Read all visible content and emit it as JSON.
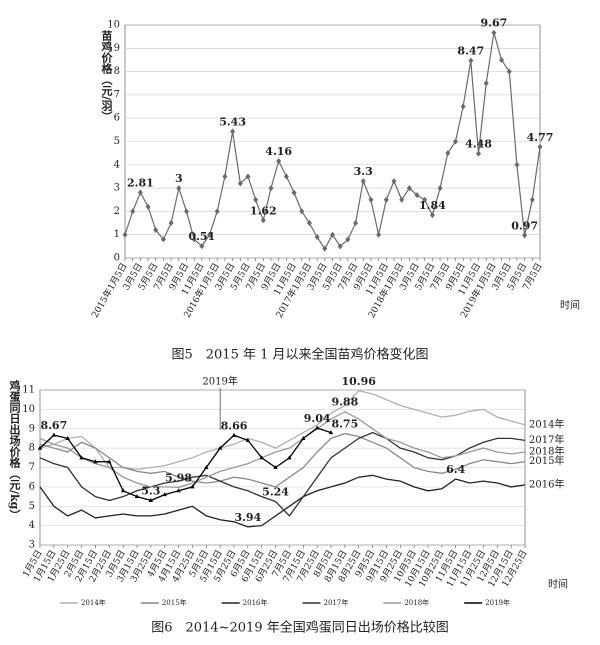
{
  "chart_data": [
    {
      "type": "line",
      "title": "图5　2015 年 1 月以来全国苗鸡价格变化图",
      "y_label": "苗鸡价格（元/羽）",
      "x_label": "时间",
      "categories": [
        "2015年1月5日",
        null,
        "3月5日",
        null,
        "5月5日",
        null,
        "7月5日",
        null,
        "9月5日",
        null,
        "11月5日",
        null,
        "2016年1月5日",
        null,
        "3月5日",
        null,
        "5月5日",
        null,
        "7月5日",
        null,
        "9月5日",
        null,
        "11月5日",
        null,
        "2017年1月5日",
        null,
        "3月5日",
        null,
        "5月5日",
        null,
        "7月5日",
        null,
        "9月5日",
        null,
        "11月5日",
        null,
        "2018年1月5日",
        null,
        "3月5日",
        null,
        "5月5日",
        null,
        "7月5日",
        null,
        "9月5日",
        null,
        "11月5日",
        null,
        "2019年1月5日",
        null,
        "3月5日",
        null,
        "5月5日",
        null,
        "7月5日"
      ],
      "values": [
        1.0,
        2.0,
        2.81,
        2.2,
        1.2,
        0.8,
        1.5,
        3.0,
        2.0,
        0.8,
        0.51,
        1.0,
        2.0,
        3.5,
        5.43,
        3.2,
        3.5,
        2.5,
        1.62,
        3.0,
        4.16,
        3.5,
        2.8,
        2.0,
        1.5,
        0.9,
        0.4,
        1.0,
        0.5,
        0.8,
        1.5,
        3.3,
        2.5,
        1.0,
        2.5,
        3.3,
        2.5,
        3.0,
        2.7,
        2.5,
        1.84,
        3.0,
        4.5,
        5.0,
        6.5,
        8.47,
        4.48,
        7.5,
        9.67,
        8.5,
        8.0,
        4.0,
        0.97,
        2.5,
        4.77
      ],
      "value_labels": [
        null,
        null,
        "2.81",
        null,
        null,
        null,
        null,
        "3",
        null,
        null,
        "0.51",
        null,
        null,
        null,
        "5.43",
        null,
        null,
        null,
        "1.62",
        null,
        "4.16",
        null,
        null,
        null,
        null,
        null,
        null,
        null,
        null,
        null,
        null,
        "3.3",
        null,
        null,
        null,
        null,
        null,
        null,
        null,
        null,
        "1.84",
        null,
        null,
        null,
        null,
        "8.47",
        "4.48",
        null,
        "9.67",
        null,
        null,
        null,
        "0.97",
        null,
        "4.77"
      ],
      "color": "#6a6a6a",
      "ylim": [
        0,
        10
      ],
      "yticks": [
        0,
        1,
        2,
        3,
        4,
        5,
        6,
        7,
        8,
        9,
        10
      ],
      "grid": true
    },
    {
      "type": "line",
      "title": "图6　2014~2019 年全国鸡蛋同日出场价格比较图",
      "y_label": "鸡蛋同日出场价格（元/kg）",
      "x_label": "时间",
      "categories": [
        "1月5日",
        "1月15日",
        "1月25日",
        "2月5日",
        "2月15日",
        "2月25日",
        "3月5日",
        "3月15日",
        "3月25日",
        "4月5日",
        "4月15日",
        "4月25日",
        "5月5日",
        "5月15日",
        "5月25日",
        "6月5日",
        "6月15日",
        "6月25日",
        "7月5日",
        "7月15日",
        "7月25日",
        "8月5日",
        "8月15日",
        "8月25日",
        "9月5日",
        "9月15日",
        "9月25日",
        "10月5日",
        "10月15日",
        "10月25日",
        "11月5日",
        "11月15日",
        "11月25日",
        "12月5日",
        "12月15日",
        "12月25日"
      ],
      "series": [
        {
          "name": "2014年",
          "color": "#b0b0b0",
          "values": [
            8.0,
            8.2,
            8.5,
            8.6,
            8.0,
            7.0,
            7.0,
            6.9,
            7.0,
            7.1,
            7.3,
            7.5,
            7.8,
            8.0,
            8.2,
            8.5,
            8.3,
            8.0,
            8.4,
            8.8,
            9.2,
            9.8,
            10.2,
            10.96,
            10.8,
            10.5,
            10.2,
            10.0,
            9.8,
            9.6,
            9.7,
            9.9,
            10.0,
            9.6,
            9.4,
            9.2
          ],
          "value_labels": [
            null,
            null,
            null,
            null,
            null,
            null,
            null,
            null,
            null,
            null,
            null,
            null,
            null,
            null,
            null,
            null,
            null,
            null,
            null,
            null,
            null,
            null,
            null,
            "10.96",
            null,
            null,
            null,
            null,
            null,
            null,
            null,
            null,
            null,
            null,
            null,
            null
          ]
        },
        {
          "name": "2015年",
          "color": "#8a8a8a",
          "values": [
            8.2,
            8.0,
            7.8,
            8.3,
            8.0,
            7.5,
            7.0,
            6.8,
            6.7,
            6.8,
            6.5,
            6.3,
            6.2,
            6.3,
            6.5,
            6.4,
            6.2,
            6.0,
            6.5,
            7.0,
            7.8,
            8.5,
            8.75,
            8.6,
            8.3,
            8.0,
            7.5,
            7.0,
            6.8,
            6.7,
            6.9,
            7.2,
            7.4,
            7.3,
            7.2,
            7.3
          ],
          "value_labels": [
            null,
            null,
            null,
            null,
            null,
            null,
            null,
            null,
            null,
            null,
            null,
            null,
            null,
            null,
            null,
            null,
            null,
            null,
            null,
            null,
            null,
            null,
            "8.75",
            null,
            null,
            null,
            null,
            null,
            null,
            null,
            null,
            null,
            null,
            null,
            null,
            null
          ]
        },
        {
          "name": "2016年",
          "color": "#222222",
          "values": [
            6.0,
            5.0,
            4.5,
            4.8,
            4.4,
            4.5,
            4.6,
            4.5,
            4.5,
            4.6,
            4.8,
            5.0,
            4.5,
            4.3,
            4.2,
            3.94,
            4.0,
            4.5,
            5.0,
            5.5,
            5.8,
            6.0,
            6.2,
            6.5,
            6.6,
            6.4,
            6.3,
            6.0,
            5.8,
            5.9,
            6.4,
            6.2,
            6.3,
            6.2,
            6.0,
            6.1
          ],
          "value_labels": [
            null,
            null,
            null,
            null,
            null,
            null,
            null,
            null,
            null,
            null,
            null,
            null,
            null,
            null,
            null,
            "3.94",
            null,
            null,
            null,
            null,
            null,
            null,
            null,
            null,
            null,
            null,
            null,
            null,
            null,
            null,
            "6.4",
            null,
            null,
            null,
            null,
            null
          ]
        },
        {
          "name": "2017年",
          "color": "#333333",
          "values": [
            7.5,
            7.2,
            7.0,
            6.0,
            5.5,
            5.3,
            5.5,
            5.8,
            6.0,
            6.2,
            6.3,
            6.5,
            6.6,
            6.3,
            6.0,
            5.8,
            5.5,
            5.24,
            4.5,
            5.5,
            6.5,
            7.5,
            8.0,
            8.5,
            8.8,
            8.5,
            8.0,
            7.8,
            7.5,
            7.4,
            7.6,
            8.0,
            8.3,
            8.5,
            8.5,
            8.4
          ],
          "value_labels": [
            null,
            null,
            null,
            null,
            null,
            null,
            null,
            null,
            null,
            null,
            null,
            null,
            null,
            null,
            null,
            null,
            null,
            "5.24",
            null,
            null,
            null,
            null,
            null,
            null,
            null,
            null,
            null,
            null,
            null,
            null,
            null,
            null,
            null,
            null,
            null,
            null
          ]
        },
        {
          "name": "2018年",
          "color": "#999999",
          "values": [
            8.5,
            8.2,
            8.0,
            7.5,
            7.2,
            7.0,
            6.5,
            6.2,
            6.0,
            6.0,
            5.98,
            6.2,
            6.5,
            6.8,
            7.0,
            7.2,
            7.5,
            7.8,
            8.0,
            8.5,
            9.0,
            9.5,
            9.88,
            9.5,
            9.0,
            8.5,
            8.3,
            8.0,
            7.8,
            7.5,
            7.6,
            7.8,
            8.0,
            7.8,
            7.7,
            7.8
          ],
          "value_labels": [
            null,
            null,
            null,
            null,
            null,
            null,
            null,
            null,
            null,
            null,
            "5.98",
            null,
            null,
            null,
            null,
            null,
            null,
            null,
            null,
            null,
            null,
            null,
            "9.88",
            null,
            null,
            null,
            null,
            null,
            null,
            null,
            null,
            null,
            null,
            null,
            null,
            null
          ]
        },
        {
          "name": "2019年",
          "color": "#000000",
          "values": [
            8.0,
            8.67,
            8.5,
            7.5,
            7.3,
            7.3,
            5.8,
            5.5,
            5.3,
            5.6,
            5.8,
            6.0,
            7.0,
            8.0,
            8.66,
            8.4,
            7.5,
            7.0,
            7.5,
            8.5,
            9.04,
            8.8,
            null,
            null,
            null,
            null,
            null,
            null,
            null,
            null,
            null,
            null,
            null,
            null,
            null,
            null
          ],
          "value_labels": [
            null,
            "8.67",
            null,
            null,
            null,
            null,
            null,
            null,
            "5.3",
            null,
            null,
            null,
            null,
            null,
            "8.66",
            null,
            null,
            null,
            null,
            null,
            "9.04",
            null,
            null,
            null,
            null,
            null,
            null,
            null,
            null,
            null,
            null,
            null,
            null,
            null,
            null,
            null
          ]
        }
      ],
      "ylim": [
        3,
        11
      ],
      "yticks": [
        3,
        4,
        5,
        6,
        7,
        8,
        9,
        10,
        11
      ],
      "grid": true,
      "legend": "bottom"
    }
  ]
}
